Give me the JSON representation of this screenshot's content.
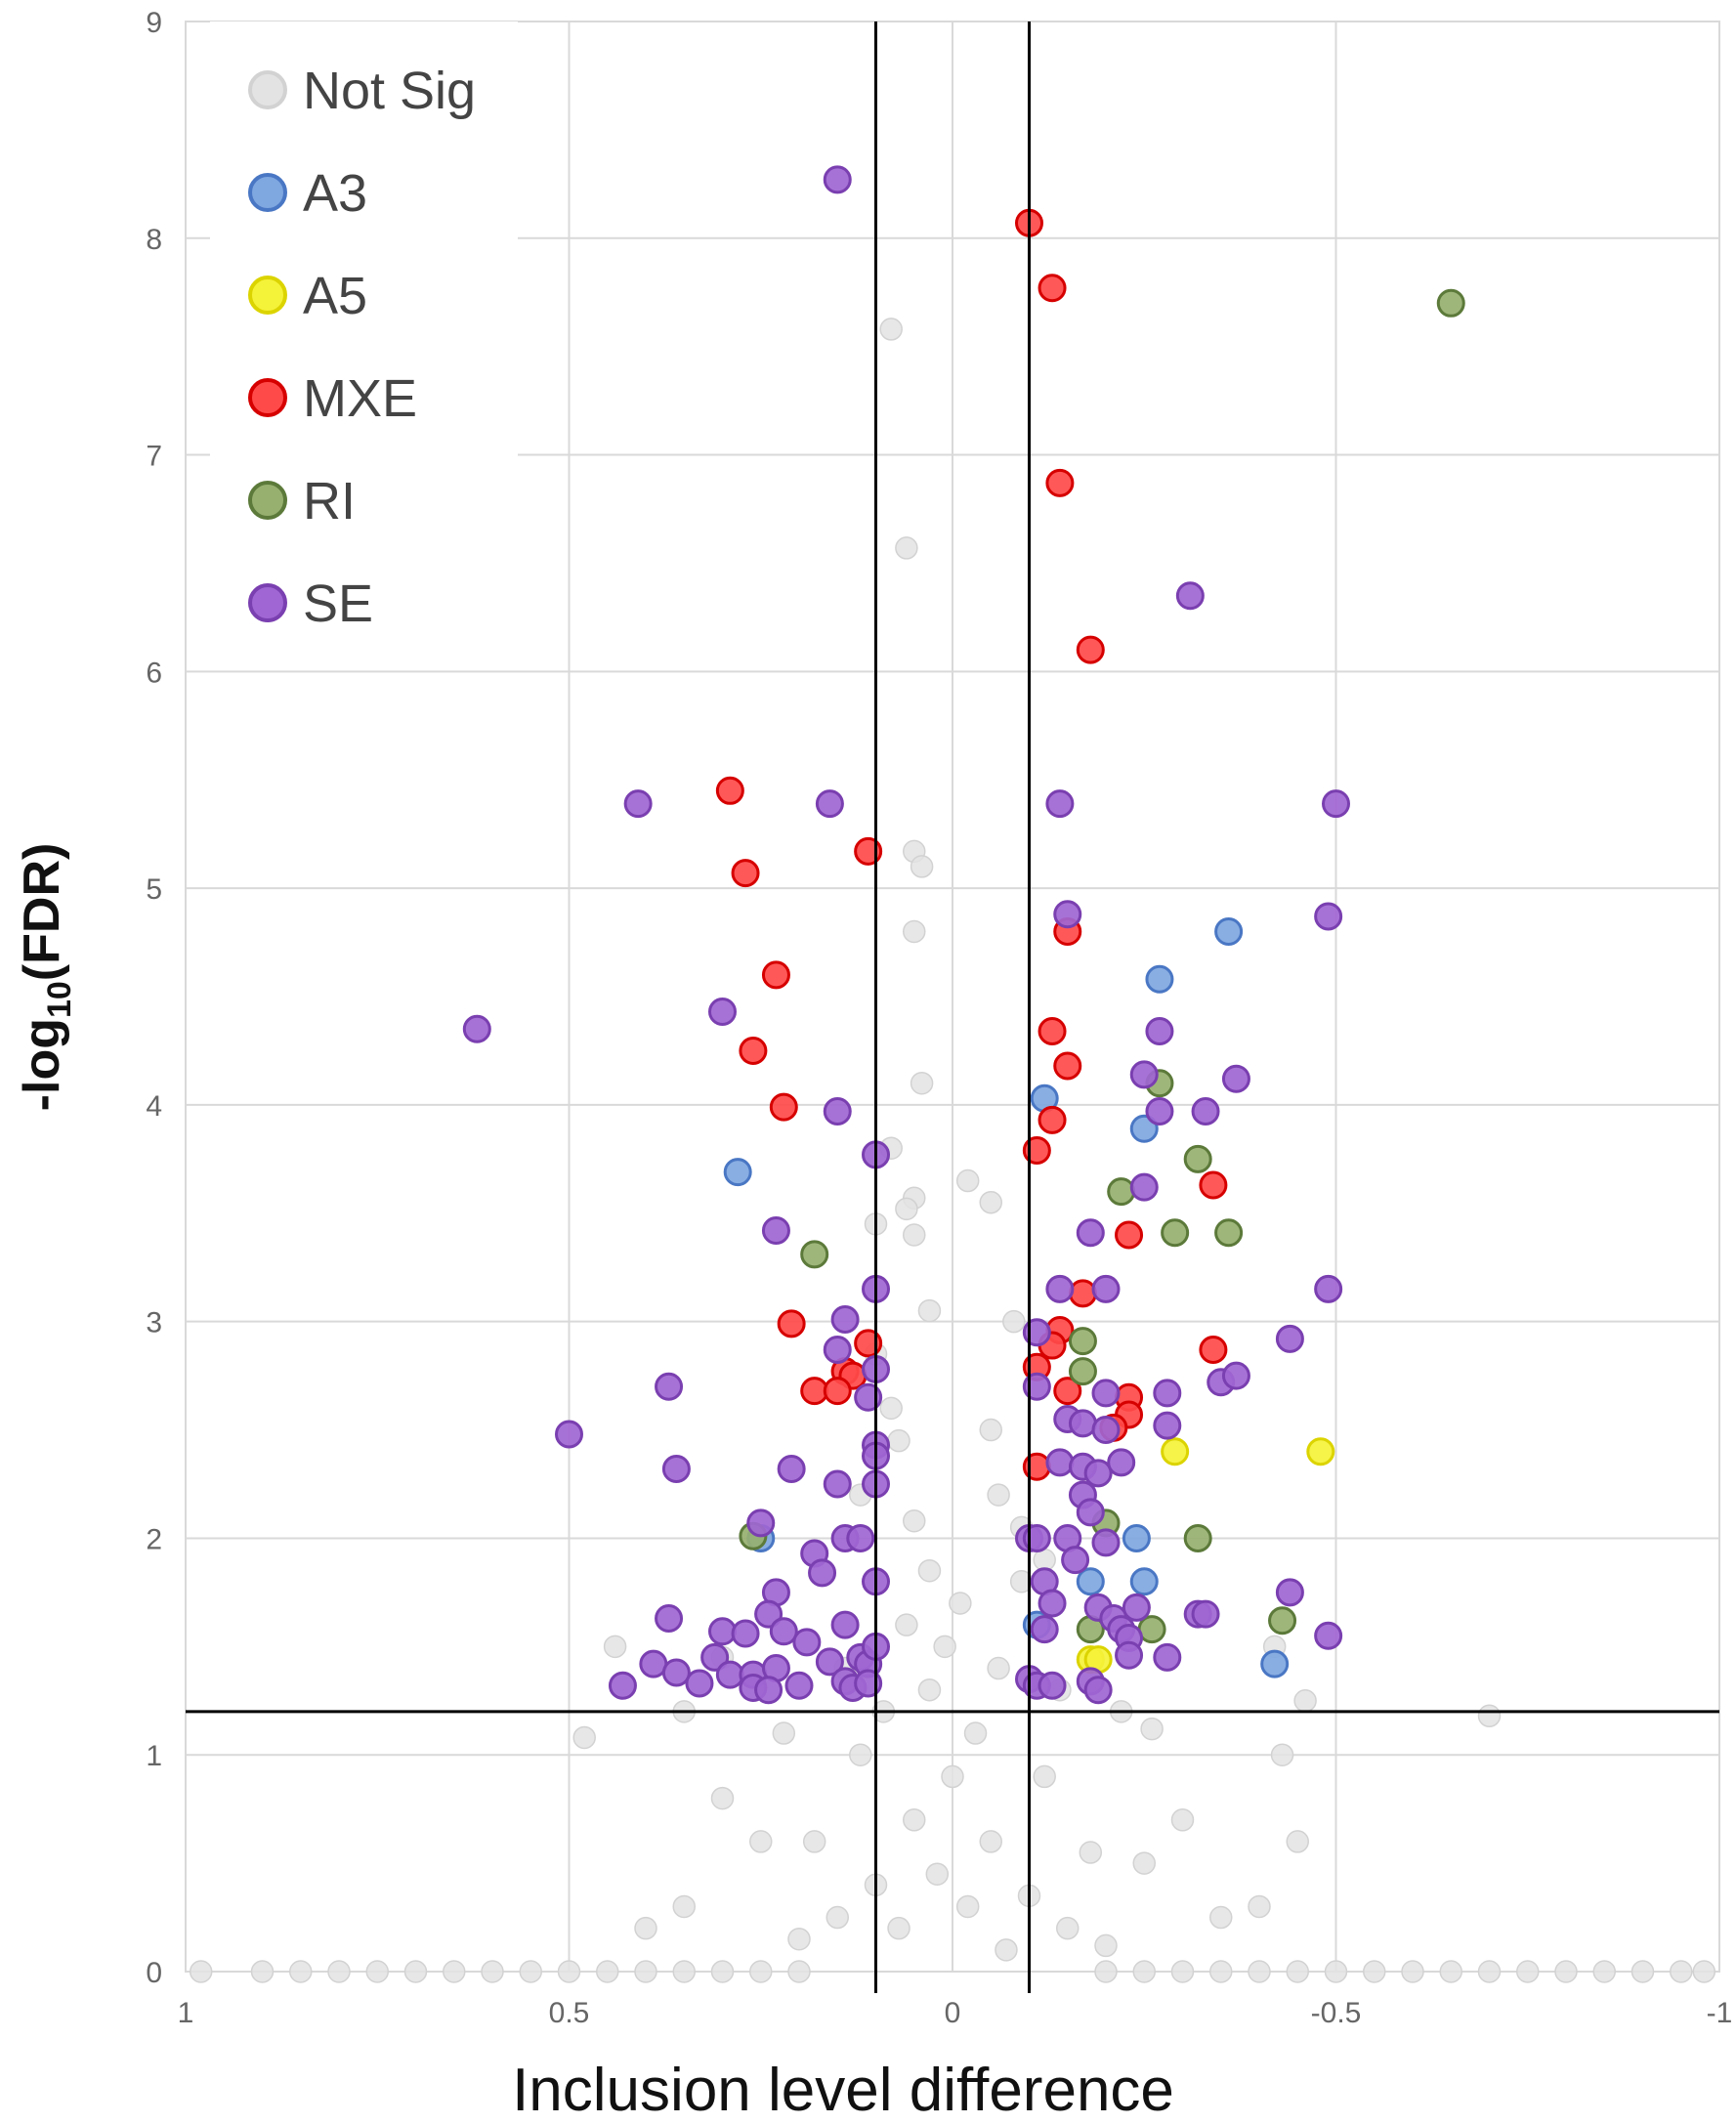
{
  "chart_data": {
    "type": "scatter",
    "title": "",
    "xlabel": "Inclusion level difference",
    "ylabel_main": "-log",
    "ylabel_sub": "10",
    "ylabel_tail": "(FDR)",
    "xlim": [
      1,
      -1
    ],
    "ylim": [
      0,
      9
    ],
    "x_ticks": [
      {
        "value": 1,
        "label": "1"
      },
      {
        "value": 0.5,
        "label": "0.5"
      },
      {
        "value": 0,
        "label": "0"
      },
      {
        "value": -0.5,
        "label": "-0.5"
      },
      {
        "value": -1,
        "label": "-1"
      }
    ],
    "y_ticks": [
      {
        "value": 0,
        "label": "0"
      },
      {
        "value": 1,
        "label": "1"
      },
      {
        "value": 2,
        "label": "2"
      },
      {
        "value": 3,
        "label": "3"
      },
      {
        "value": 4,
        "label": "4"
      },
      {
        "value": 5,
        "label": "5"
      },
      {
        "value": 6,
        "label": "6"
      },
      {
        "value": 7,
        "label": "7"
      },
      {
        "value": 8,
        "label": "8"
      },
      {
        "value": 9,
        "label": "9"
      }
    ],
    "grid": true,
    "thresholds": {
      "x": [
        0.1,
        -0.1
      ],
      "y": 1.2
    },
    "legend_position": "top-left",
    "series": [
      {
        "name": "Not Sig",
        "fill": "#e3e3e3",
        "stroke": "#d2d2d2",
        "points": [
          [
            0.08,
            7.58
          ],
          [
            0.06,
            6.57
          ],
          [
            0.05,
            5.17
          ],
          [
            0.04,
            5.1
          ],
          [
            0.05,
            4.8
          ],
          [
            0.04,
            4.1
          ],
          [
            0.08,
            3.8
          ],
          [
            0.05,
            3.57
          ],
          [
            -0.02,
            3.65
          ],
          [
            0.06,
            3.52
          ],
          [
            -0.05,
            3.55
          ],
          [
            0.05,
            3.4
          ],
          [
            0.1,
            3.45
          ],
          [
            -0.08,
            3.0
          ],
          [
            0.03,
            3.05
          ],
          [
            0.08,
            2.6
          ],
          [
            0.07,
            2.45
          ],
          [
            0.1,
            2.85
          ],
          [
            -0.05,
            2.5
          ],
          [
            -0.06,
            2.2
          ],
          [
            -0.09,
            2.05
          ],
          [
            0.05,
            2.08
          ],
          [
            0.12,
            2.2
          ],
          [
            -0.12,
            1.9
          ],
          [
            0.03,
            1.85
          ],
          [
            0.3,
            1.45
          ],
          [
            0.44,
            1.5
          ],
          [
            0.35,
            1.2
          ],
          [
            -0.42,
            1.5
          ],
          [
            -0.46,
            1.25
          ],
          [
            -0.26,
            1.12
          ],
          [
            0.48,
            1.08
          ],
          [
            -0.7,
            1.18
          ],
          [
            -0.43,
            1.0
          ],
          [
            0.0,
            0.9
          ],
          [
            0.05,
            0.7
          ],
          [
            -0.05,
            0.6
          ],
          [
            0.1,
            0.4
          ],
          [
            -0.1,
            0.35
          ],
          [
            0.15,
            0.25
          ],
          [
            -0.15,
            0.2
          ],
          [
            0.2,
            0.15
          ],
          [
            -0.2,
            0.12
          ],
          [
            0.02,
            0.45
          ],
          [
            -0.02,
            0.3
          ],
          [
            0.07,
            0.2
          ],
          [
            -0.07,
            0.1
          ],
          [
            0.3,
            0.8
          ],
          [
            0.25,
            0.6
          ],
          [
            -0.3,
            0.7
          ],
          [
            -0.25,
            0.5
          ],
          [
            0.35,
            0.3
          ],
          [
            -0.35,
            0.25
          ],
          [
            0.12,
            1.0
          ],
          [
            -0.12,
            0.9
          ],
          [
            0.18,
            0.6
          ],
          [
            -0.18,
            0.55
          ],
          [
            0.4,
            0.2
          ],
          [
            -0.4,
            0.3
          ],
          [
            -0.45,
            0.6
          ],
          [
            0.9,
            0.0
          ],
          [
            0.85,
            0.0
          ],
          [
            0.8,
            0.0
          ],
          [
            0.75,
            0.0
          ],
          [
            0.7,
            0.0
          ],
          [
            0.65,
            0.0
          ],
          [
            0.6,
            0.0
          ],
          [
            0.55,
            0.0
          ],
          [
            0.5,
            0.0
          ],
          [
            0.45,
            0.0
          ],
          [
            0.4,
            0.0
          ],
          [
            0.35,
            0.0
          ],
          [
            0.3,
            0.0
          ],
          [
            0.25,
            0.0
          ],
          [
            0.2,
            0.0
          ],
          [
            -0.2,
            0.0
          ],
          [
            -0.25,
            0.0
          ],
          [
            -0.3,
            0.0
          ],
          [
            -0.35,
            0.0
          ],
          [
            -0.4,
            0.0
          ],
          [
            -0.45,
            0.0
          ],
          [
            -0.5,
            0.0
          ],
          [
            -0.55,
            0.0
          ],
          [
            -0.6,
            0.0
          ],
          [
            -0.65,
            0.0
          ],
          [
            -0.7,
            0.0
          ],
          [
            -0.75,
            0.0
          ],
          [
            -0.8,
            0.0
          ],
          [
            -0.85,
            0.0
          ],
          [
            -0.9,
            0.0
          ],
          [
            -0.95,
            0.0
          ],
          [
            0.98,
            0.0
          ],
          [
            -0.98,
            0.0
          ],
          [
            0.01,
            1.5
          ],
          [
            -0.01,
            1.7
          ],
          [
            0.03,
            1.3
          ],
          [
            -0.03,
            1.1
          ],
          [
            0.06,
            1.6
          ],
          [
            -0.06,
            1.4
          ],
          [
            0.09,
            1.2
          ],
          [
            -0.09,
            1.8
          ],
          [
            0.14,
            1.4
          ],
          [
            -0.14,
            1.3
          ],
          [
            0.22,
            1.1
          ],
          [
            -0.22,
            1.2
          ]
        ]
      },
      {
        "name": "A3",
        "fill": "#7fa7e0",
        "stroke": "#4a77c4",
        "points": [
          [
            -0.36,
            4.8
          ],
          [
            -0.27,
            4.58
          ],
          [
            -0.12,
            4.03
          ],
          [
            -0.25,
            3.89
          ],
          [
            0.28,
            3.69
          ],
          [
            -0.24,
            2.0
          ],
          [
            0.25,
            2.0
          ],
          [
            -0.25,
            1.8
          ],
          [
            -0.18,
            1.8
          ],
          [
            -0.42,
            1.42
          ],
          [
            -0.11,
            1.6
          ]
        ]
      },
      {
        "name": "A5",
        "fill": "#f5f23a",
        "stroke": "#dcd400",
        "points": [
          [
            -0.29,
            2.4
          ],
          [
            -0.48,
            2.4
          ],
          [
            -0.18,
            1.44
          ],
          [
            -0.19,
            1.44
          ]
        ]
      },
      {
        "name": "MXE",
        "fill": "#ff4a4a",
        "stroke": "#d60000",
        "points": [
          [
            -0.1,
            8.07
          ],
          [
            -0.13,
            7.77
          ],
          [
            -0.14,
            6.87
          ],
          [
            -0.18,
            6.1
          ],
          [
            0.29,
            5.45
          ],
          [
            0.27,
            5.07
          ],
          [
            0.11,
            5.17
          ],
          [
            -0.15,
            4.8
          ],
          [
            0.23,
            4.6
          ],
          [
            0.26,
            4.25
          ],
          [
            -0.13,
            4.34
          ],
          [
            -0.15,
            4.18
          ],
          [
            0.22,
            3.99
          ],
          [
            -0.13,
            3.93
          ],
          [
            -0.11,
            3.79
          ],
          [
            -0.34,
            3.63
          ],
          [
            -0.23,
            3.4
          ],
          [
            -0.17,
            3.13
          ],
          [
            0.21,
            2.99
          ],
          [
            -0.14,
            2.96
          ],
          [
            -0.13,
            2.89
          ],
          [
            0.11,
            2.9
          ],
          [
            -0.11,
            2.79
          ],
          [
            -0.34,
            2.87
          ],
          [
            0.14,
            2.77
          ],
          [
            0.13,
            2.75
          ],
          [
            0.18,
            2.68
          ],
          [
            0.15,
            2.68
          ],
          [
            -0.15,
            2.68
          ],
          [
            -0.23,
            2.65
          ],
          [
            -0.23,
            2.57
          ],
          [
            -0.21,
            2.51
          ],
          [
            -0.11,
            2.33
          ]
        ]
      },
      {
        "name": "RI",
        "fill": "#97b070",
        "stroke": "#5c7a3a",
        "points": [
          [
            -0.65,
            7.7
          ],
          [
            -0.27,
            4.1
          ],
          [
            -0.32,
            3.75
          ],
          [
            -0.22,
            3.6
          ],
          [
            -0.29,
            3.41
          ],
          [
            -0.36,
            3.41
          ],
          [
            0.18,
            3.31
          ],
          [
            -0.17,
            2.91
          ],
          [
            -0.17,
            2.77
          ],
          [
            0.26,
            2.01
          ],
          [
            -0.2,
            2.07
          ],
          [
            -0.32,
            2.0
          ],
          [
            -0.26,
            1.58
          ],
          [
            -0.43,
            1.62
          ],
          [
            -0.18,
            1.58
          ]
        ]
      },
      {
        "name": "SE",
        "fill": "#a066d3",
        "stroke": "#7a3fb0",
        "points": [
          [
            0.15,
            8.27
          ],
          [
            -0.31,
            6.35
          ],
          [
            0.41,
            5.39
          ],
          [
            0.16,
            5.39
          ],
          [
            -0.14,
            5.39
          ],
          [
            -0.5,
            5.39
          ],
          [
            -0.15,
            4.88
          ],
          [
            -0.49,
            4.87
          ],
          [
            0.62,
            4.35
          ],
          [
            0.3,
            4.43
          ],
          [
            -0.27,
            4.34
          ],
          [
            -0.25,
            4.14
          ],
          [
            -0.37,
            4.12
          ],
          [
            0.15,
            3.97
          ],
          [
            -0.27,
            3.97
          ],
          [
            -0.33,
            3.97
          ],
          [
            0.1,
            3.77
          ],
          [
            -0.25,
            3.62
          ],
          [
            0.23,
            3.42
          ],
          [
            -0.18,
            3.41
          ],
          [
            0.1,
            3.15
          ],
          [
            -0.14,
            3.15
          ],
          [
            -0.2,
            3.15
          ],
          [
            -0.49,
            3.15
          ],
          [
            0.14,
            3.01
          ],
          [
            0.15,
            2.87
          ],
          [
            0.1,
            2.78
          ],
          [
            -0.11,
            2.95
          ],
          [
            -0.44,
            2.92
          ],
          [
            0.37,
            2.7
          ],
          [
            0.11,
            2.65
          ],
          [
            -0.11,
            2.7
          ],
          [
            -0.2,
            2.67
          ],
          [
            -0.28,
            2.67
          ],
          [
            -0.35,
            2.72
          ],
          [
            -0.37,
            2.75
          ],
          [
            0.5,
            2.48
          ],
          [
            0.1,
            2.43
          ],
          [
            -0.15,
            2.55
          ],
          [
            -0.17,
            2.53
          ],
          [
            -0.2,
            2.5
          ],
          [
            -0.28,
            2.52
          ],
          [
            0.36,
            2.32
          ],
          [
            0.21,
            2.32
          ],
          [
            0.1,
            2.38
          ],
          [
            -0.14,
            2.35
          ],
          [
            -0.17,
            2.33
          ],
          [
            -0.19,
            2.3
          ],
          [
            -0.22,
            2.35
          ],
          [
            0.15,
            2.25
          ],
          [
            0.1,
            2.25
          ],
          [
            -0.17,
            2.2
          ],
          [
            -0.18,
            2.12
          ],
          [
            0.25,
            2.07
          ],
          [
            0.14,
            2.0
          ],
          [
            0.12,
            2.0
          ],
          [
            -0.1,
            2.0
          ],
          [
            -0.11,
            2.0
          ],
          [
            -0.15,
            2.0
          ],
          [
            -0.2,
            1.98
          ],
          [
            0.18,
            1.93
          ],
          [
            0.17,
            1.84
          ],
          [
            0.1,
            1.8
          ],
          [
            -0.16,
            1.9
          ],
          [
            -0.12,
            1.8
          ],
          [
            0.23,
            1.75
          ],
          [
            0.37,
            1.63
          ],
          [
            0.3,
            1.57
          ],
          [
            0.27,
            1.56
          ],
          [
            0.24,
            1.65
          ],
          [
            0.22,
            1.57
          ],
          [
            0.19,
            1.52
          ],
          [
            0.14,
            1.6
          ],
          [
            0.12,
            1.45
          ],
          [
            0.11,
            1.42
          ],
          [
            0.1,
            1.5
          ],
          [
            -0.12,
            1.58
          ],
          [
            -0.13,
            1.7
          ],
          [
            -0.19,
            1.68
          ],
          [
            -0.21,
            1.63
          ],
          [
            -0.22,
            1.58
          ],
          [
            -0.23,
            1.54
          ],
          [
            -0.24,
            1.68
          ],
          [
            -0.28,
            1.45
          ],
          [
            -0.32,
            1.65
          ],
          [
            -0.33,
            1.65
          ],
          [
            -0.44,
            1.75
          ],
          [
            -0.49,
            1.55
          ],
          [
            0.31,
            1.45
          ],
          [
            0.29,
            1.37
          ],
          [
            0.26,
            1.37
          ],
          [
            0.23,
            1.4
          ],
          [
            0.2,
            1.32
          ],
          [
            0.16,
            1.43
          ],
          [
            0.14,
            1.34
          ],
          [
            0.13,
            1.31
          ],
          [
            0.11,
            1.33
          ],
          [
            -0.1,
            1.35
          ],
          [
            -0.11,
            1.32
          ],
          [
            -0.13,
            1.32
          ],
          [
            -0.18,
            1.34
          ],
          [
            -0.19,
            1.3
          ],
          [
            -0.23,
            1.46
          ],
          [
            0.43,
            1.32
          ],
          [
            0.39,
            1.42
          ],
          [
            0.36,
            1.38
          ],
          [
            0.33,
            1.33
          ],
          [
            0.26,
            1.31
          ],
          [
            0.24,
            1.3
          ]
        ]
      }
    ]
  },
  "legend": {
    "items": [
      {
        "label": "Not Sig",
        "fill": "#e3e3e3",
        "stroke": "#d2d2d2"
      },
      {
        "label": "A3",
        "fill": "#7fa7e0",
        "stroke": "#4a77c4"
      },
      {
        "label": "A5",
        "fill": "#f5f23a",
        "stroke": "#dcd400"
      },
      {
        "label": "MXE",
        "fill": "#ff4a4a",
        "stroke": "#d60000"
      },
      {
        "label": "RI",
        "fill": "#97b070",
        "stroke": "#5c7a3a"
      },
      {
        "label": "SE",
        "fill": "#a066d3",
        "stroke": "#7a3fb0"
      }
    ]
  }
}
